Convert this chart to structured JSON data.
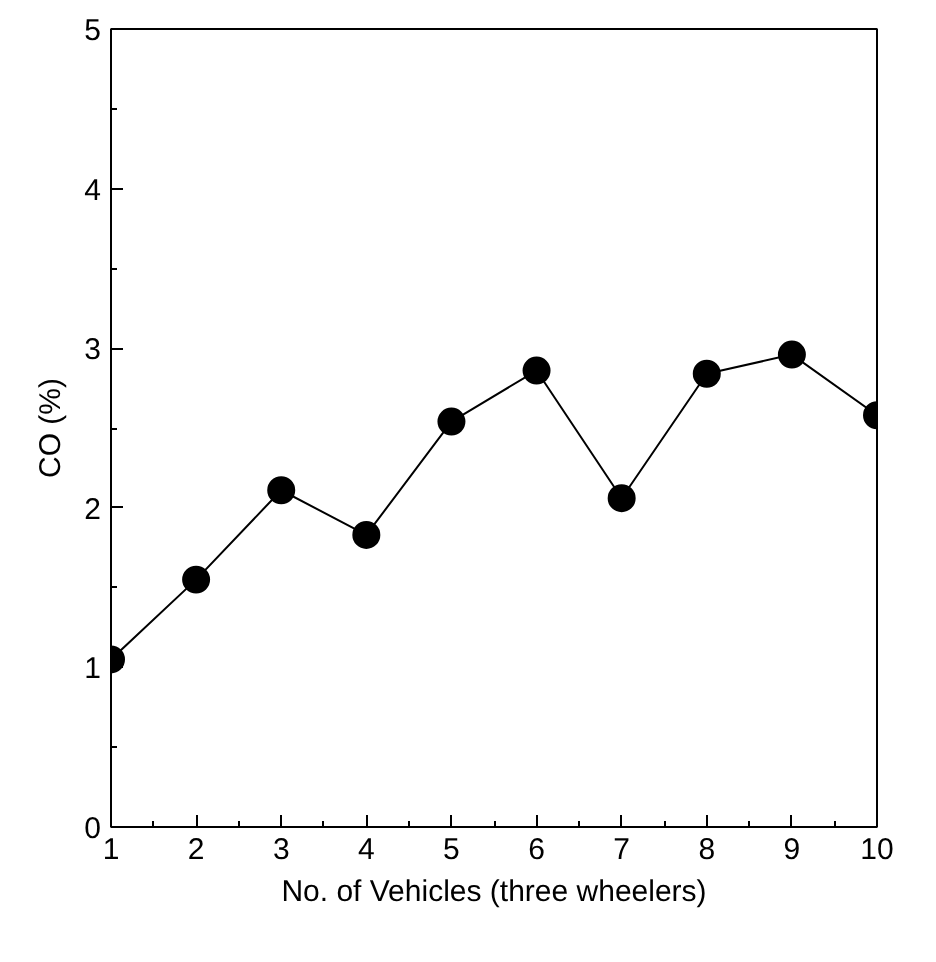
{
  "chart_data": {
    "type": "line",
    "xlabel": "No. of Vehicles (three wheelers)",
    "ylabel": "CO (%)",
    "x": [
      1,
      2,
      3,
      4,
      5,
      6,
      7,
      8,
      9,
      10
    ],
    "series": [
      {
        "color": "#000000",
        "values": [
          1.05,
          1.55,
          2.11,
          1.83,
          2.54,
          2.86,
          2.06,
          2.84,
          2.96,
          2.58
        ]
      }
    ],
    "xlim": [
      1,
      10
    ],
    "xticks": [
      1,
      2,
      3,
      4,
      5,
      6,
      7,
      8,
      9,
      10
    ],
    "ylim": [
      0,
      5
    ],
    "yticks": [
      0,
      1,
      2,
      3,
      4,
      5
    ],
    "marker": "circle",
    "line_style": "solid",
    "grid": false
  }
}
